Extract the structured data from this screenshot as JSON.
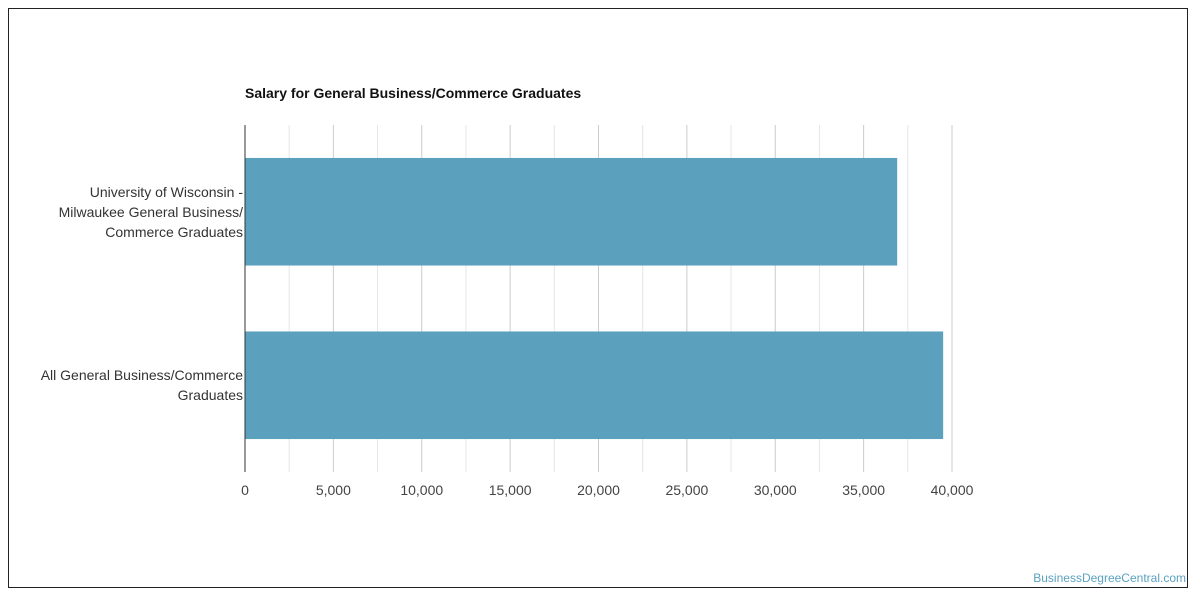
{
  "chart_data": {
    "type": "bar",
    "orientation": "horizontal",
    "title": "Salary for General Business/Commerce Graduates",
    "categories": [
      "University of Wisconsin -\nMilwaukee General Business/\nCommerce Graduates",
      "All General Business/Commerce\nGraduates"
    ],
    "values": [
      36900,
      39500
    ],
    "xlim": [
      0,
      40000
    ],
    "xticks": [
      0,
      5000,
      10000,
      15000,
      20000,
      25000,
      30000,
      35000,
      40000
    ],
    "xtick_labels": [
      "0",
      "5,000",
      "10,000",
      "15,000",
      "20,000",
      "25,000",
      "30,000",
      "35,000",
      "40,000"
    ],
    "xlabel": "",
    "ylabel": "",
    "grid": true,
    "bar_color": "#5ba1be"
  },
  "watermark": "BusinessDegreeCentral.com"
}
